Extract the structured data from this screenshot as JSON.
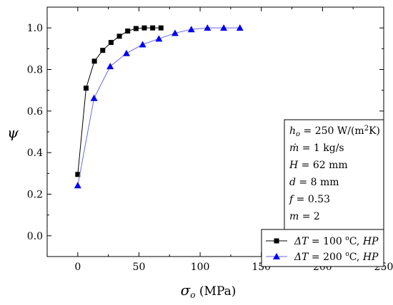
{
  "chart_data": {
    "type": "line",
    "xlabel": {
      "symbol": "σ",
      "subscript": "o",
      "unit": " (MPa)"
    },
    "ylabel": "ψ",
    "xlim": [
      -25,
      250
    ],
    "ylim": [
      -0.1,
      1.1
    ],
    "x_ticks": [
      0,
      50,
      100,
      150,
      200,
      250
    ],
    "y_ticks": [
      0.0,
      0.2,
      0.4,
      0.6,
      0.8,
      1.0
    ],
    "x_tick_labels": [
      "0",
      "50",
      "100",
      "150",
      "200",
      "250"
    ],
    "y_tick_labels": [
      "0.0",
      "0.2",
      "0.4",
      "0.6",
      "0.8",
      "1.0"
    ],
    "grid": false,
    "legend_position": "bottom-right",
    "series": [
      {
        "name_parts": [
          "ΔT",
          " = 100 ",
          "o",
          "C, ",
          "HP"
        ],
        "marker": "square",
        "color": "#000000",
        "line_color": "#000000",
        "x": [
          0,
          6.8,
          13.6,
          20.4,
          27.2,
          34,
          40.8,
          47.6,
          54.4,
          61.2,
          68
        ],
        "y": [
          0.295,
          0.71,
          0.84,
          0.892,
          0.93,
          0.96,
          0.985,
          0.997,
          1.0,
          1.0,
          1.0
        ]
      },
      {
        "name_parts": [
          "ΔT",
          " = 200 ",
          "o",
          "C, ",
          "HP"
        ],
        "marker": "triangle",
        "color": "#0000ee",
        "line_color": "#6a6ae0",
        "x": [
          0,
          13.3,
          26.5,
          39.8,
          53,
          66.3,
          79.5,
          92.8,
          106,
          119.3,
          132.5
        ],
        "y": [
          0.242,
          0.662,
          0.815,
          0.878,
          0.92,
          0.948,
          0.975,
          0.993,
          1.0,
          1.0,
          1.0
        ]
      }
    ],
    "annotations": {
      "lines": [
        [
          {
            "t": "h",
            "i": true
          },
          {
            "t": "o",
            "i": true,
            "sub": true
          },
          {
            "t": " = 250 W/(m"
          },
          {
            "t": "2",
            "sup": true
          },
          {
            "t": "K)"
          }
        ],
        [
          {
            "t": "ṁ",
            "i": true
          },
          {
            "t": " = 1 kg/s"
          }
        ],
        [
          {
            "t": "H",
            "i": true
          },
          {
            "t": " = 62 mm"
          }
        ],
        [
          {
            "t": "d",
            "i": true
          },
          {
            "t": " = 8 mm"
          }
        ],
        [
          {
            "t": "f",
            "i": true
          },
          {
            "t": " = 0.53"
          }
        ],
        [
          {
            "t": "m",
            "i": true
          },
          {
            "t": " = 2"
          }
        ]
      ]
    }
  }
}
